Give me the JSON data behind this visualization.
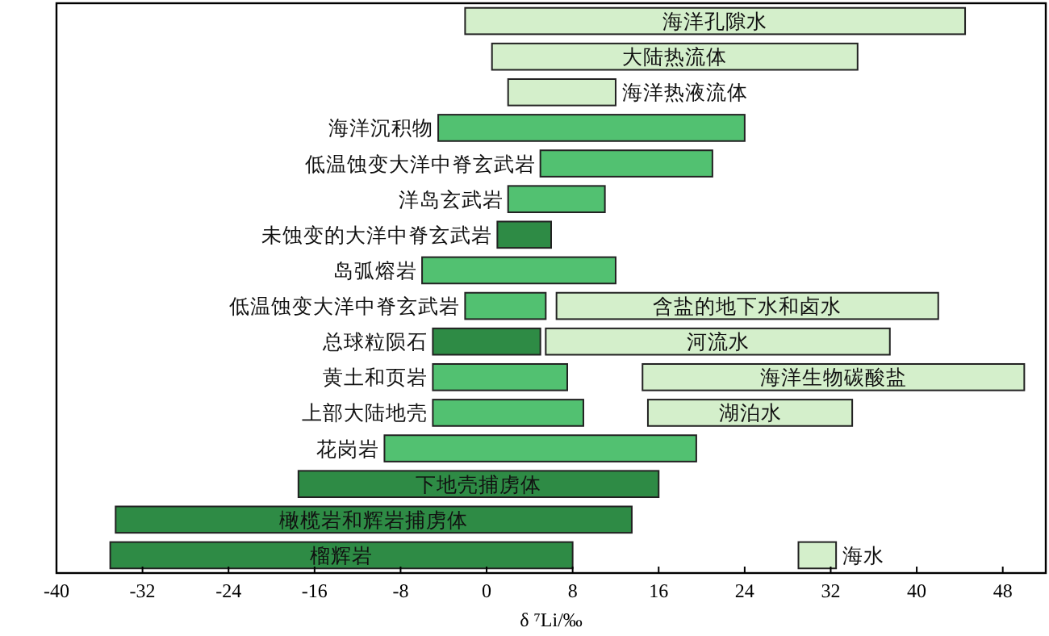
{
  "chart_data": {
    "type": "bar",
    "orientation": "horizontal",
    "xlabel": "δ ⁷Li/‰",
    "xlim": [
      -40,
      52
    ],
    "xticks": [
      -40,
      -32,
      -24,
      -16,
      -8,
      0,
      8,
      16,
      24,
      32,
      40,
      48
    ],
    "grid": false,
    "legend": false,
    "categories": [
      "海洋孔隙水",
      "大陆热流体",
      "海洋热液流体",
      "海洋沉积物",
      "低温蚀变大洋中脊玄武岩",
      "洋岛玄武岩",
      "未蚀变的大洋中脊玄武岩",
      "岛弧熔岩",
      "低温蚀变大洋中脊玄武岩",
      "总球粒陨石",
      "黄土和页岩",
      "上部大陆地壳",
      "花岗岩",
      "下地壳捕虏体",
      "橄榄岩和辉岩捕虏体",
      "榴辉岩"
    ],
    "series": [
      {
        "base": [
          -2,
          0.5,
          2,
          -4.5,
          5,
          2,
          1,
          -6,
          -2,
          -5,
          -5,
          -5,
          -9.5,
          -17.5,
          -34.5,
          -35
        ],
        "values": [
          46.5,
          34,
          10,
          28.5,
          16,
          9,
          5,
          18,
          7.5,
          10,
          12.5,
          14,
          29,
          33.5,
          48,
          43
        ],
        "colors": [
          "#d4efcb",
          "#d4efcb",
          "#d4efcb",
          "#52c171",
          "#52c171",
          "#52c171",
          "#2e8b45",
          "#52c171",
          "#52c171",
          "#2e8b45",
          "#52c171",
          "#52c171",
          "#52c171",
          "#2e8b45",
          "#2e8b45",
          "#2e8b45"
        ]
      },
      {
        "base": [
          null,
          null,
          null,
          null,
          null,
          null,
          null,
          null,
          6.5,
          5.5,
          14.5,
          15,
          null,
          null,
          null,
          29
        ],
        "values": [
          null,
          null,
          null,
          null,
          null,
          null,
          null,
          null,
          35.5,
          32,
          35.5,
          19,
          null,
          null,
          null,
          3.5
        ],
        "color": "#d4efcb",
        "value_labels": [
          null,
          null,
          null,
          null,
          null,
          null,
          null,
          null,
          "含盐的地下水和卤水",
          "河流水",
          "海洋生物碳酸盐",
          "湖泊水",
          null,
          null,
          null,
          "海水"
        ]
      }
    ]
  }
}
